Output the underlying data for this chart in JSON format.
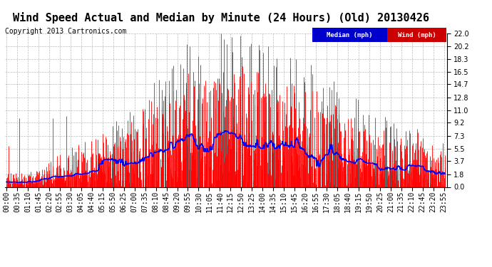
{
  "title": "Wind Speed Actual and Median by Minute (24 Hours) (Old) 20130426",
  "copyright": "Copyright 2013 Cartronics.com",
  "yticks": [
    0.0,
    1.8,
    3.7,
    5.5,
    7.3,
    9.2,
    11.0,
    12.8,
    14.7,
    16.5,
    18.3,
    20.2,
    22.0
  ],
  "ylim": [
    0.0,
    22.0
  ],
  "background_color": "#ffffff",
  "grid_color": "#aaaaaa",
  "wind_color": "#ff0000",
  "median_color": "#0000ff",
  "dark_bar_color": "#555555",
  "legend_median_bg": "#0000cc",
  "legend_wind_bg": "#cc0000",
  "title_fontsize": 11,
  "copyright_fontsize": 7,
  "tick_fontsize": 7,
  "xtick_step": 35
}
